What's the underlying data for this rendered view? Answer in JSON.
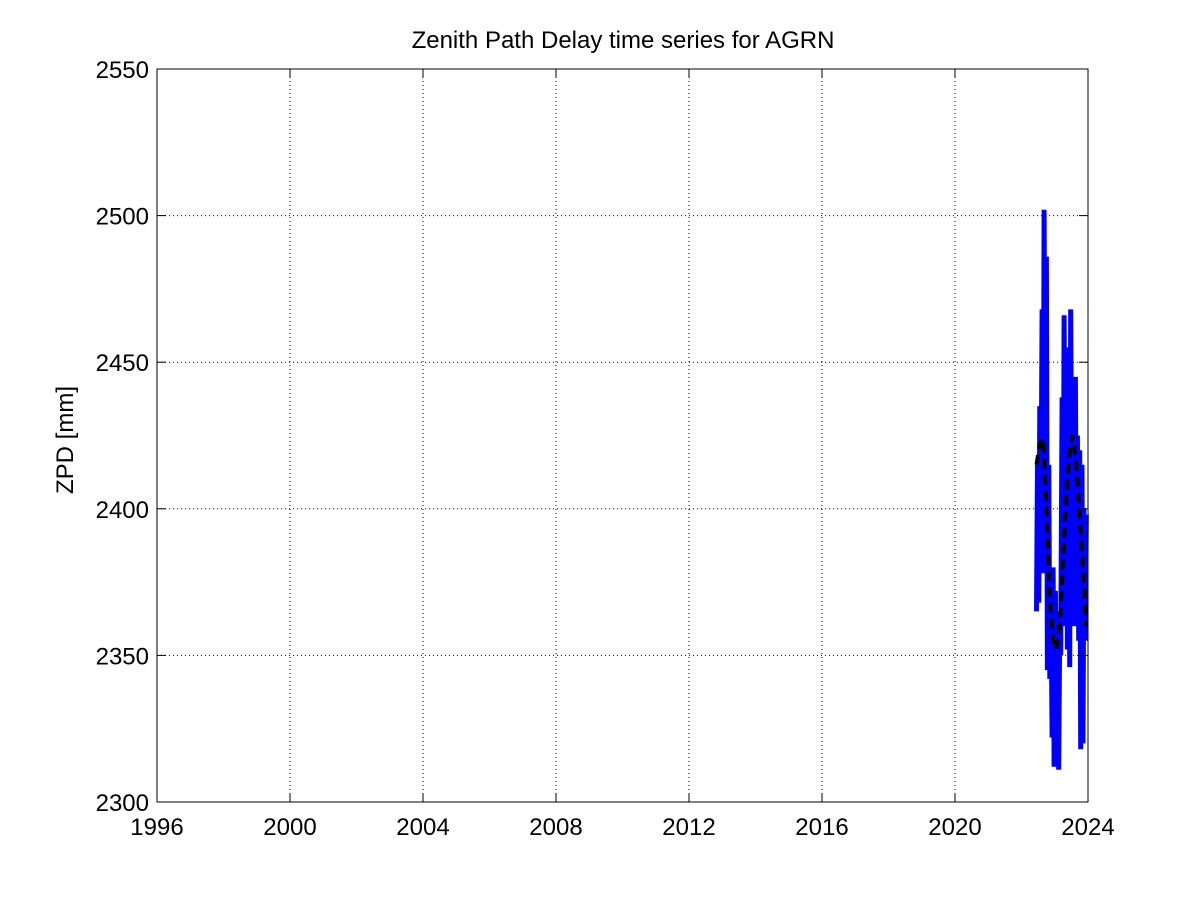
{
  "chart_data": {
    "type": "line",
    "title": "Zenith Path Delay time series for AGRN",
    "xlabel": "",
    "ylabel": "ZPD [mm]",
    "xlim": [
      1996,
      2024
    ],
    "ylim": [
      2300,
      2550
    ],
    "x_ticks": [
      "1996",
      "2000",
      "2004",
      "2008",
      "2012",
      "2016",
      "2020",
      "2024"
    ],
    "y_ticks": [
      "2300",
      "2350",
      "2400",
      "2450",
      "2500",
      "2550"
    ],
    "grid": true,
    "legend": "none",
    "colors": {
      "raw": "#0000ff",
      "smoothed": "#000000"
    },
    "series": [
      {
        "style": "solid-blue",
        "x": [
          2022.45,
          2022.48,
          2022.52,
          2022.55,
          2022.58,
          2022.62,
          2022.65,
          2022.68,
          2022.72,
          2022.75,
          2022.78,
          2022.82,
          2022.85,
          2022.88,
          2022.92,
          2022.95,
          2022.98,
          2023.02,
          2023.05,
          2023.08,
          2023.12,
          2023.15,
          2023.18,
          2023.22,
          2023.25,
          2023.28,
          2023.32,
          2023.35,
          2023.38,
          2023.42,
          2023.45,
          2023.48,
          2023.52,
          2023.55,
          2023.58,
          2023.62,
          2023.65,
          2023.68,
          2023.72,
          2023.75,
          2023.78,
          2023.82,
          2023.85,
          2023.88,
          2023.92,
          2023.95
        ],
        "y": [
          2365,
          2415,
          2368,
          2435,
          2385,
          2468,
          2378,
          2502,
          2395,
          2486,
          2345,
          2415,
          2342,
          2378,
          2322,
          2380,
          2312,
          2372,
          2330,
          2365,
          2311,
          2360,
          2350,
          2438,
          2360,
          2466,
          2375,
          2436,
          2352,
          2455,
          2346,
          2468,
          2380,
          2430,
          2360,
          2445,
          2368,
          2425,
          2355,
          2420,
          2318,
          2415,
          2320,
          2400,
          2355,
          2398
        ]
      },
      {
        "style": "dashed-black",
        "x": [
          2022.45,
          2022.55,
          2022.65,
          2022.75,
          2022.85,
          2022.95,
          2023.05,
          2023.15,
          2023.25,
          2023.35,
          2023.45,
          2023.55,
          2023.65,
          2023.75,
          2023.85,
          2023.95
        ],
        "y": [
          2415,
          2422,
          2424,
          2400,
          2370,
          2355,
          2352,
          2360,
          2382,
          2405,
          2420,
          2425,
          2415,
          2398,
          2380,
          2360
        ]
      }
    ]
  }
}
